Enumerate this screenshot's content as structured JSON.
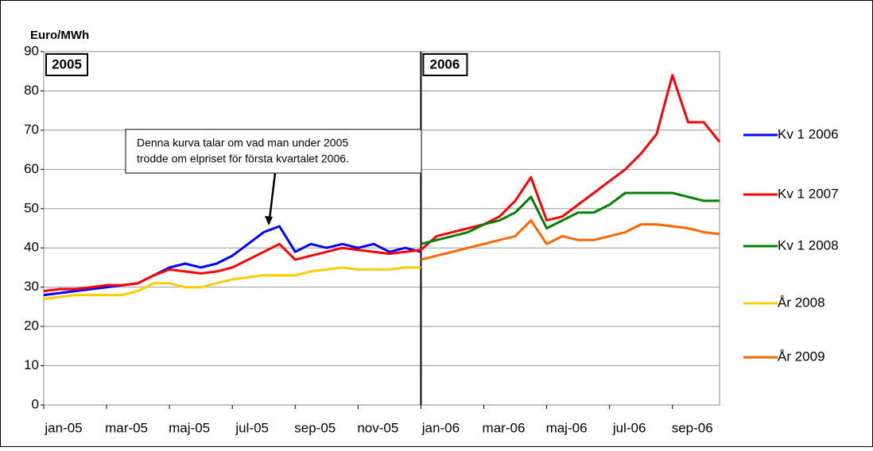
{
  "chart_data": {
    "type": "line",
    "y_label": "Euro/MWh",
    "annotations": {
      "year_labels": [
        "2005",
        "2006"
      ],
      "note": [
        "Denna kurva talar om vad man under 2005",
        "trodde om elpriset för första kvartalet 2006."
      ]
    },
    "categories": [
      "jan-05",
      null,
      null,
      null,
      "mar-05",
      null,
      null,
      null,
      "maj-05",
      null,
      null,
      null,
      "jul-05",
      null,
      null,
      null,
      "sep-05",
      null,
      null,
      null,
      "nov-05",
      null,
      null,
      null,
      "jan-06",
      null,
      null,
      null,
      "mar-06",
      null,
      null,
      null,
      "maj-06",
      null,
      null,
      null,
      "jul-06",
      null,
      null,
      null,
      "sep-06",
      null,
      null,
      null
    ],
    "series": [
      {
        "name": "Kv 1 2006",
        "color": "#0000ff",
        "values": [
          28,
          28.5,
          29,
          29.5,
          30,
          30.5,
          31,
          33,
          35,
          36,
          35,
          36,
          38,
          41,
          44,
          45.5,
          39,
          41,
          40,
          41,
          40,
          41,
          39,
          40,
          39,
          null,
          null,
          null,
          null,
          null,
          null,
          null,
          null,
          null,
          null,
          null,
          null,
          null,
          null,
          null,
          null,
          null,
          null,
          null
        ]
      },
      {
        "name": "Kv 1 2007",
        "color": "#ff0000",
        "values": [
          29,
          29.5,
          29.5,
          30,
          30.5,
          30.5,
          31,
          33,
          34.5,
          34,
          33.5,
          34,
          35,
          37,
          39,
          41,
          37,
          38,
          39,
          40,
          39.5,
          39,
          38.5,
          39,
          39.5,
          43,
          44,
          45,
          46,
          48,
          52,
          58,
          47,
          48,
          51,
          54,
          57,
          60,
          64,
          69,
          84,
          72,
          72,
          67
        ]
      },
      {
        "name": "Kv 1 2008",
        "color": "#008000",
        "values": [
          null,
          null,
          null,
          null,
          null,
          null,
          null,
          null,
          null,
          null,
          null,
          null,
          null,
          null,
          null,
          null,
          null,
          null,
          null,
          null,
          null,
          null,
          null,
          null,
          41,
          42,
          43,
          44,
          46,
          47,
          49,
          53,
          45,
          47,
          49,
          49,
          51,
          54,
          54,
          54,
          54,
          53,
          52,
          52
        ]
      },
      {
        "name": "År 2008",
        "color": "#ffcc00",
        "values": [
          27,
          27.5,
          28,
          28,
          28,
          28,
          29,
          31,
          31,
          30,
          30,
          31,
          32,
          32.5,
          33,
          33,
          33,
          34,
          34.5,
          35,
          34.5,
          34.5,
          34.5,
          35,
          35,
          null,
          null,
          null,
          null,
          null,
          null,
          null,
          null,
          null,
          null,
          null,
          null,
          null,
          null,
          null,
          null,
          null,
          null,
          null
        ]
      },
      {
        "name": "År 2009",
        "color": "#ff6600",
        "values": [
          null,
          null,
          null,
          null,
          null,
          null,
          null,
          null,
          null,
          null,
          null,
          null,
          null,
          null,
          null,
          null,
          null,
          null,
          null,
          null,
          null,
          null,
          null,
          null,
          37,
          38,
          39,
          40,
          41,
          42,
          43,
          47,
          41,
          43,
          42,
          42,
          43,
          44,
          46,
          46,
          45.5,
          45,
          44,
          43.5
        ]
      }
    ],
    "ylim": [
      0,
      90
    ],
    "yticks": [
      0,
      10,
      20,
      30,
      40,
      50,
      60,
      70,
      80,
      90
    ],
    "grid": true
  }
}
